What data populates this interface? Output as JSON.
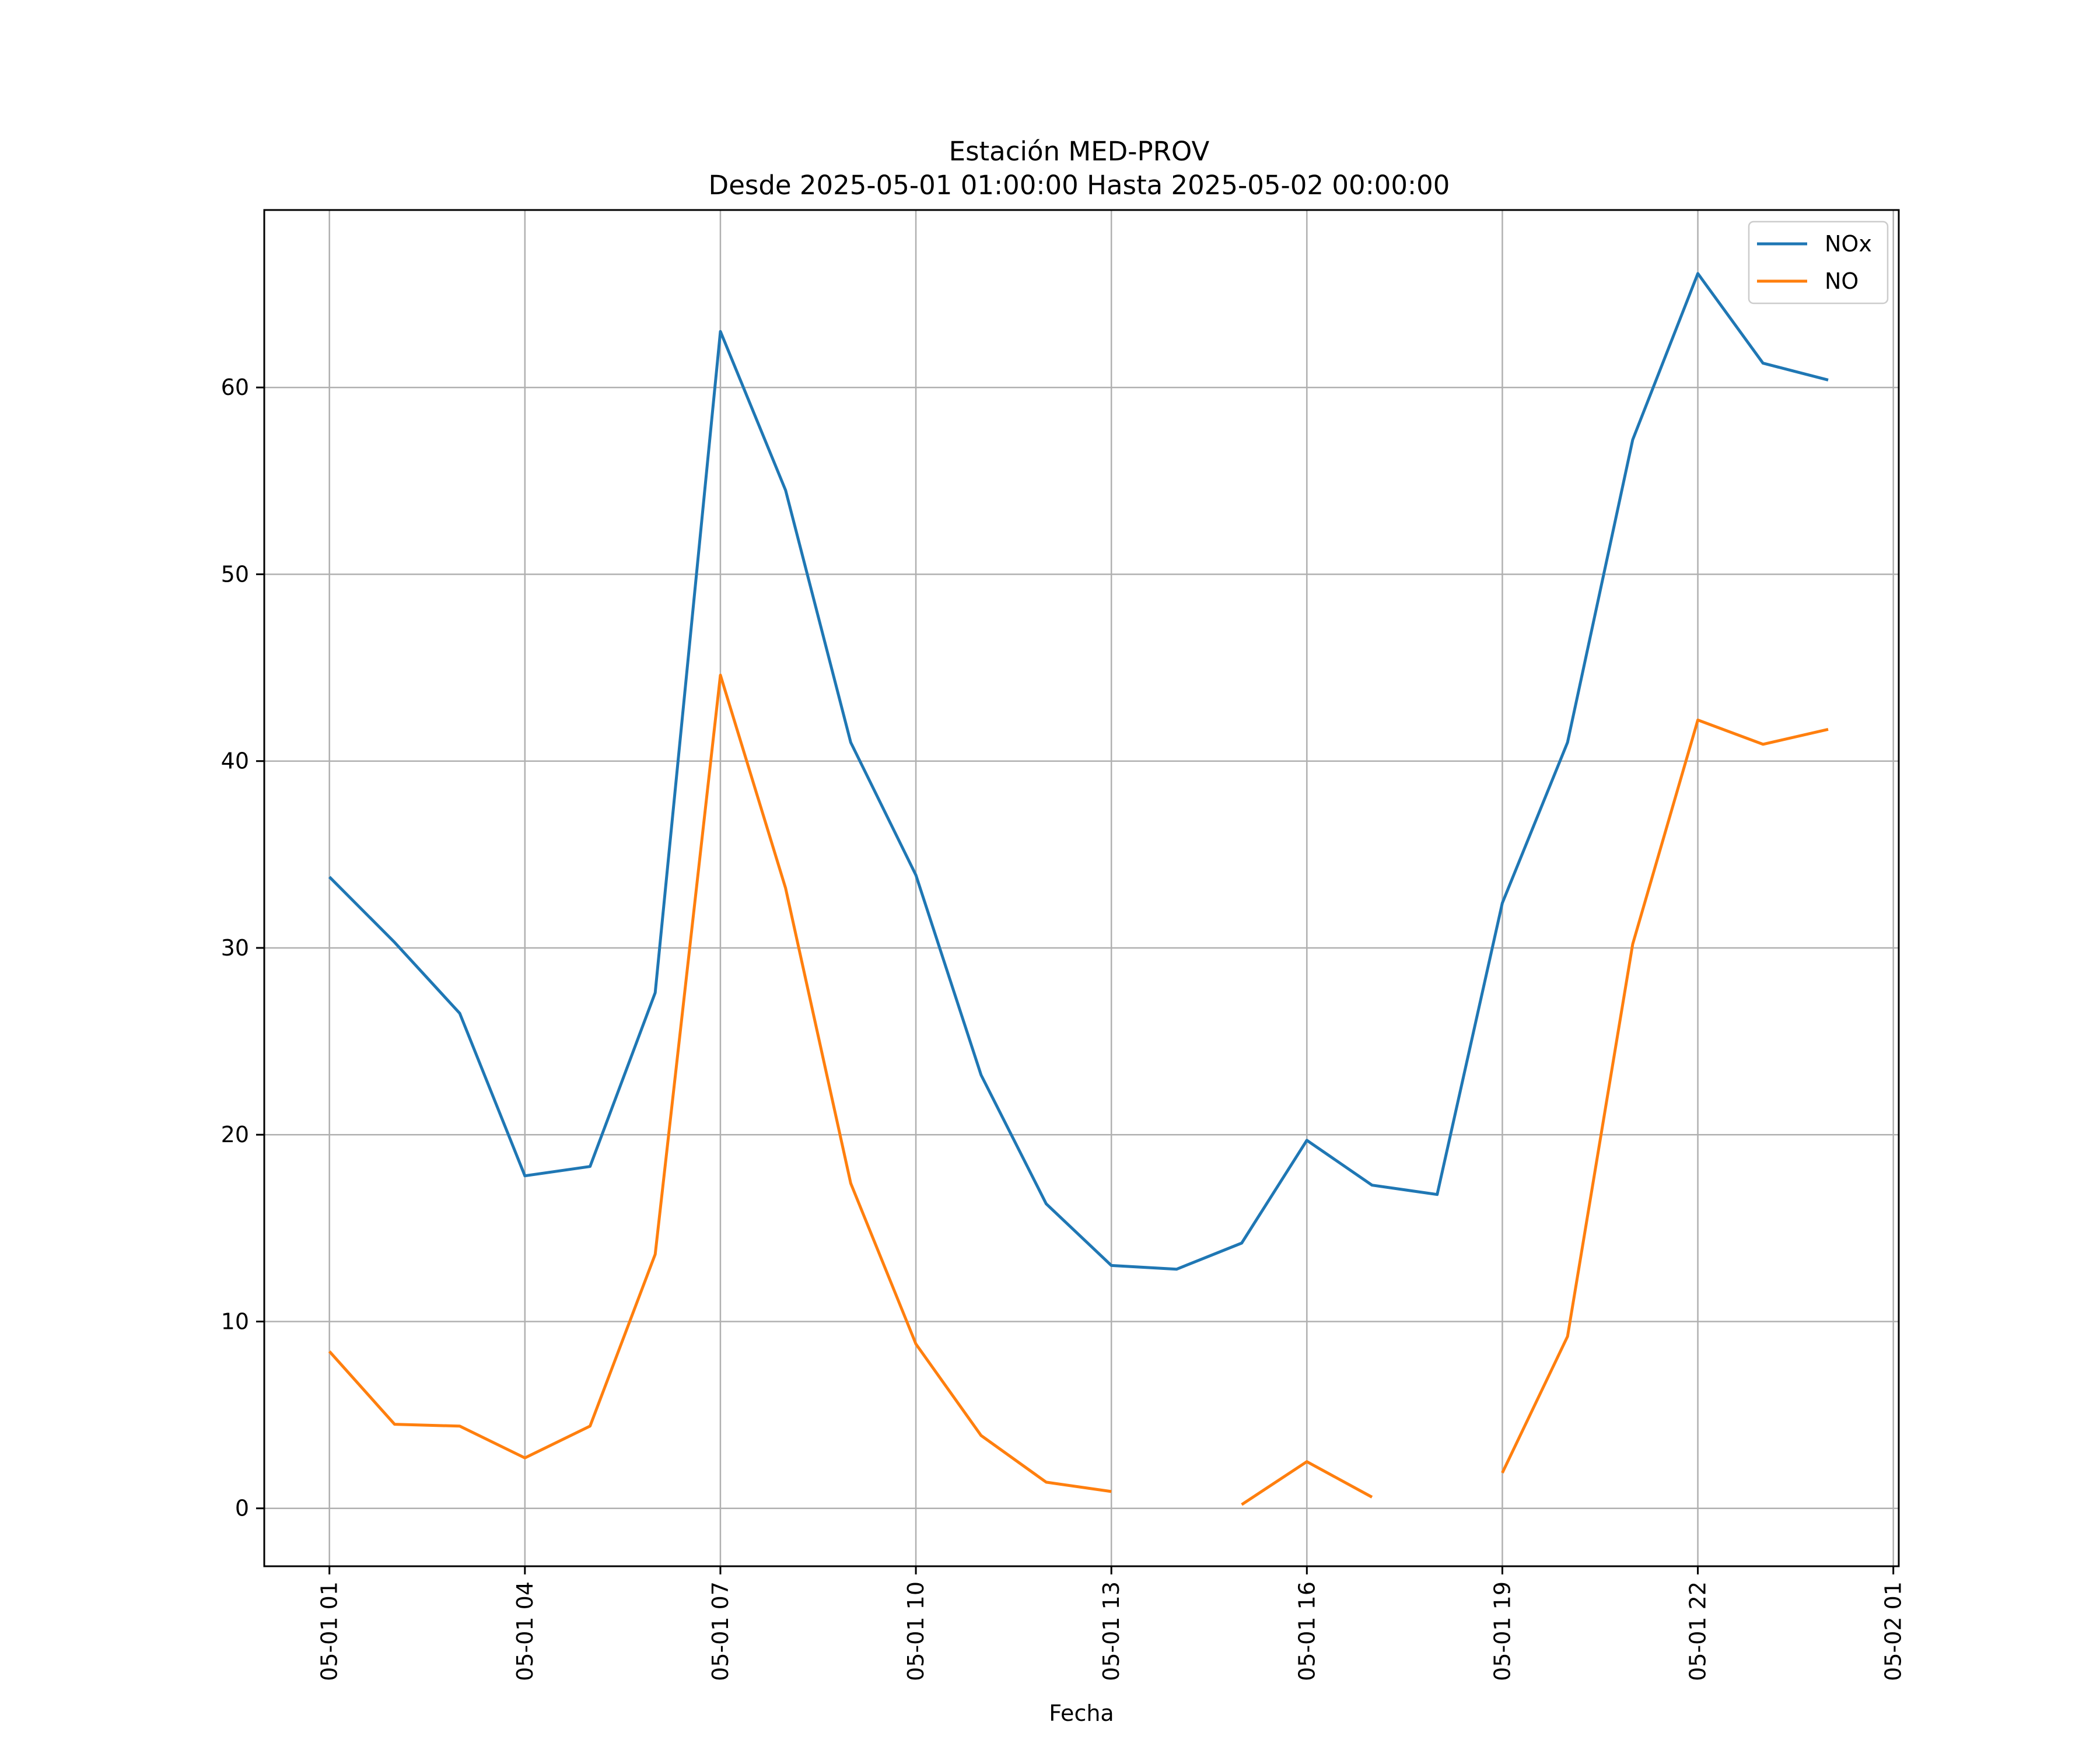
{
  "chart_data": {
    "type": "line",
    "title": "Estación MED-PROV",
    "subtitle": "Desde 2025-05-01 01:00:00 Hasta 2025-05-02 00:00:00",
    "xlabel": "Fecha",
    "ylabel": "",
    "grid": true,
    "legend_position": "top-right",
    "x": [
      "2025-05-01 01:00",
      "2025-05-01 02:00",
      "2025-05-01 03:00",
      "2025-05-01 04:00",
      "2025-05-01 05:00",
      "2025-05-01 06:00",
      "2025-05-01 07:00",
      "2025-05-01 08:00",
      "2025-05-01 09:00",
      "2025-05-01 10:00",
      "2025-05-01 11:00",
      "2025-05-01 12:00",
      "2025-05-01 13:00",
      "2025-05-01 14:00",
      "2025-05-01 15:00",
      "2025-05-01 16:00",
      "2025-05-01 17:00",
      "2025-05-01 18:00",
      "2025-05-01 19:00",
      "2025-05-01 20:00",
      "2025-05-01 21:00",
      "2025-05-01 22:00",
      "2025-05-01 23:00",
      "2025-05-02 00:00"
    ],
    "x_ticks": [
      "05-01 01",
      "05-01 04",
      "05-01 07",
      "05-01 10",
      "05-01 13",
      "05-01 16",
      "05-01 19",
      "05-01 22",
      "05-02 01"
    ],
    "y_ticks": [
      0,
      10,
      20,
      30,
      40,
      50,
      60
    ],
    "xlim": [
      "2025-05-01 00:00",
      "2025-05-02 01:05"
    ],
    "ylim": [
      -3.1,
      69.5
    ],
    "series": [
      {
        "name": "NOx",
        "color": "#1f77b4",
        "values": [
          33.8,
          30.3,
          26.5,
          17.8,
          18.3,
          27.6,
          63.0,
          54.5,
          41.0,
          33.9,
          23.2,
          16.3,
          13.0,
          12.8,
          14.2,
          19.7,
          17.3,
          16.8,
          32.4,
          41.0,
          57.2,
          66.1,
          61.3,
          60.4
        ]
      },
      {
        "name": "NO",
        "color": "#ff7f0e",
        "values": [
          8.4,
          4.5,
          4.4,
          2.7,
          4.4,
          13.6,
          44.6,
          33.2,
          17.4,
          8.8,
          3.9,
          1.4,
          0.9,
          null,
          0.2,
          2.5,
          0.6,
          null,
          1.9,
          9.2,
          30.2,
          42.2,
          40.9,
          41.7
        ]
      }
    ]
  }
}
